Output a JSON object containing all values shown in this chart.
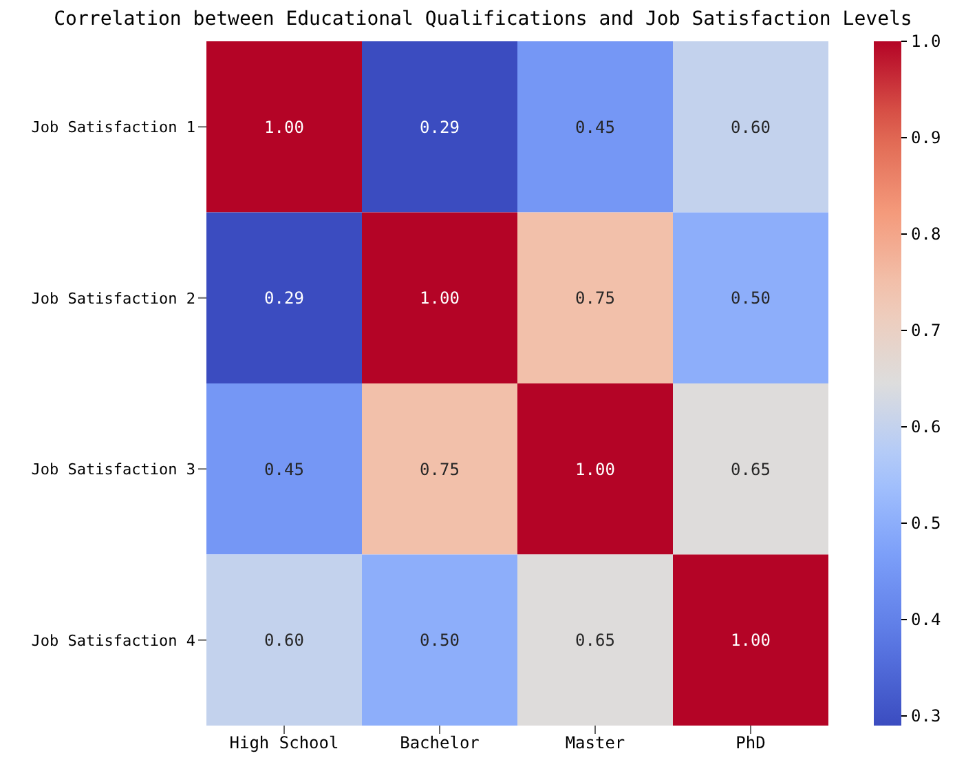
{
  "chart_data": {
    "type": "heatmap",
    "title": "Correlation between Educational Qualifications and Job Satisfaction Levels",
    "categories": [
      "High School",
      "Bachelor",
      "Master",
      "PhD"
    ],
    "y_categories": [
      "Job Satisfaction 1",
      "Job Satisfaction 2",
      "Job Satisfaction 3",
      "Job Satisfaction 4"
    ],
    "cells": [
      [
        1.0,
        0.29,
        0.45,
        0.6
      ],
      [
        0.29,
        1.0,
        0.75,
        0.5
      ],
      [
        0.45,
        0.75,
        1.0,
        0.65
      ],
      [
        0.6,
        0.5,
        0.65,
        1.0
      ]
    ],
    "cell_labels": [
      [
        "1.00",
        "0.29",
        "0.45",
        "0.60"
      ],
      [
        "0.29",
        "1.00",
        "0.75",
        "0.50"
      ],
      [
        "0.45",
        "0.75",
        "1.00",
        "0.65"
      ],
      [
        "0.60",
        "0.50",
        "0.65",
        "1.00"
      ]
    ],
    "clim": [
      0.29,
      1.0
    ],
    "cticks": [
      0.3,
      0.4,
      0.5,
      0.6,
      0.7,
      0.8,
      0.9,
      {
        "value": 1,
        "label": "1.0"
      }
    ]
  }
}
